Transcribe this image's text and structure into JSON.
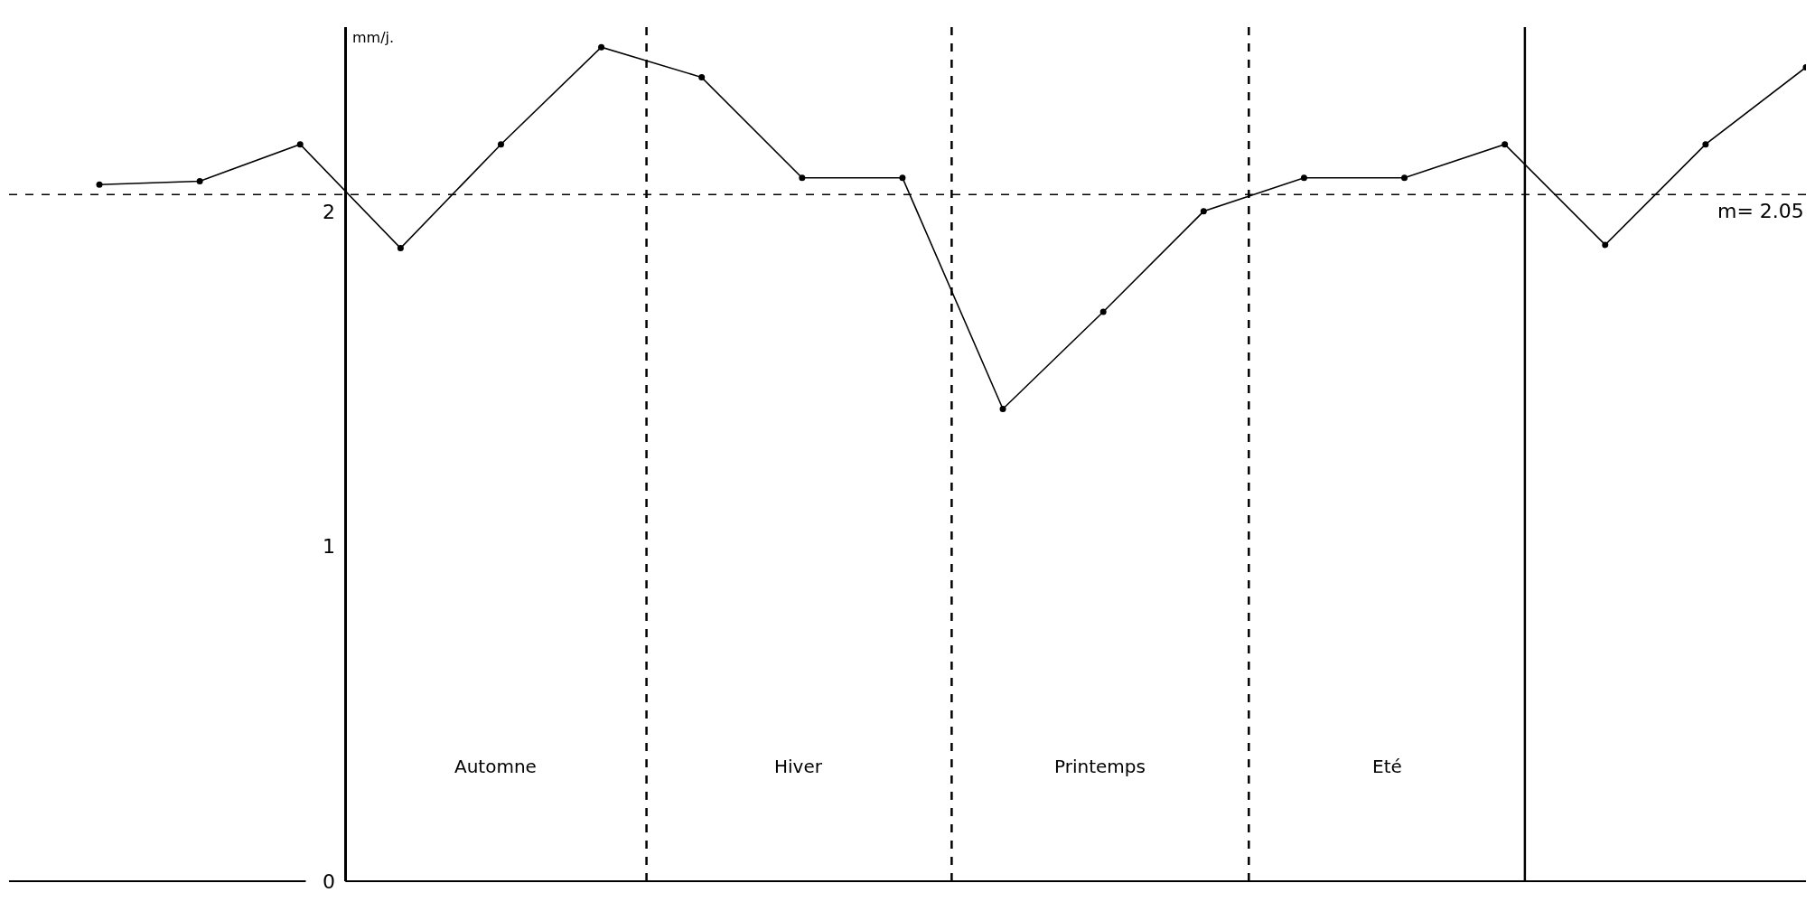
{
  "chart_data": {
    "type": "line",
    "ylabel": "mm/j.",
    "categories": [
      null,
      null,
      null,
      null,
      null,
      null,
      null,
      null,
      null,
      null,
      null,
      null,
      null,
      null,
      null,
      null,
      null,
      null
    ],
    "series": [
      {
        "color": "#000000",
        "values": [
          2.08,
          2.09,
          2.2,
          1.89,
          2.2,
          2.49,
          2.4,
          2.1,
          2.1,
          1.41,
          1.7,
          2.0,
          2.1,
          2.1,
          2.2,
          1.9,
          2.2,
          2.43
        ]
      }
    ],
    "ylim": [
      0,
      2.55
    ],
    "yticks": [
      0,
      1,
      2
    ],
    "tick_labels": "y",
    "marker": "circle",
    "line_style": "solid",
    "ref_lines": [
      {
        "axis": "y",
        "value": 2.05,
        "label": "m= 2.05",
        "line_style": "dashed",
        "color": "#000000"
      }
    ],
    "annotations": [
      "Automne",
      "Hiver",
      "Printemps",
      "Eté"
    ]
  }
}
